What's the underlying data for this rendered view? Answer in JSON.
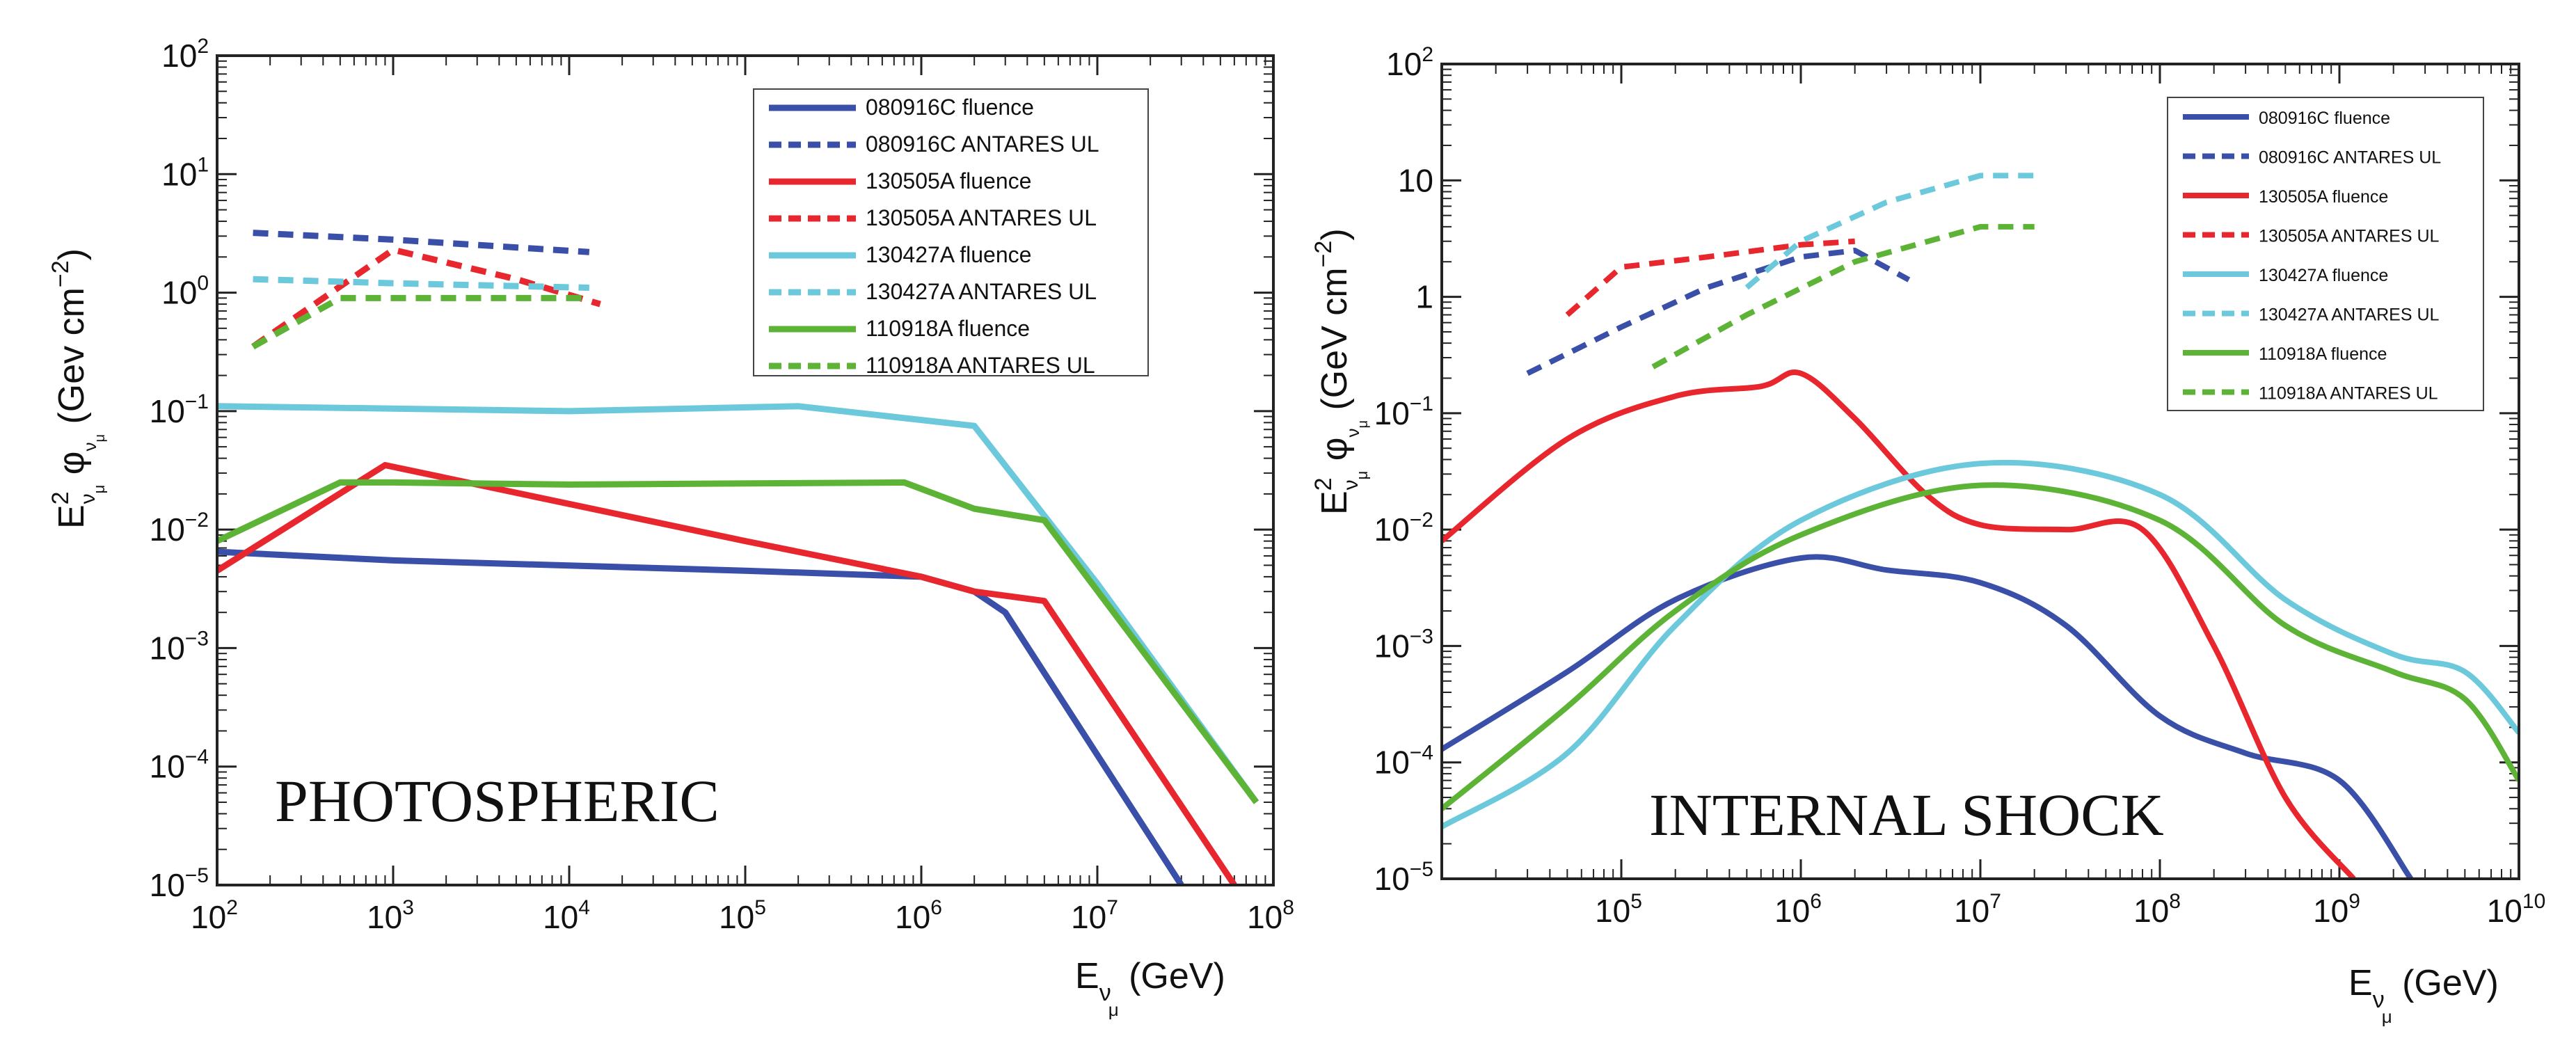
{
  "colors": {
    "blue": "#3a4fa8",
    "red": "#e8262d",
    "cyan": "#6cc9dc",
    "green": "#5cb335"
  },
  "chart_data": [
    {
      "type": "line",
      "panel_label": "PHOTOSPHERIC",
      "xscale": "log",
      "yscale": "log",
      "xlim": [
        100,
        100000000
      ],
      "ylim": [
        1e-05,
        100
      ],
      "xlabel": {
        "main": "E",
        "sub1": "ν",
        "sub2": "μ",
        "unit": " (GeV)"
      },
      "ylabel": {
        "main": "E",
        "sup": "2",
        "sub1": "ν",
        "sub2": "μ",
        "phi": " φ",
        "unit": " (Gev cm",
        "unit_sup": "−2",
        "unit_close": ")"
      },
      "xticks": [
        {
          "base": "10",
          "exp": "2"
        },
        {
          "base": "10",
          "exp": "3"
        },
        {
          "base": "10",
          "exp": "4"
        },
        {
          "base": "10",
          "exp": "5"
        },
        {
          "base": "10",
          "exp": "6"
        },
        {
          "base": "10",
          "exp": "7"
        },
        {
          "base": "10",
          "exp": "8"
        }
      ],
      "yticks": [
        {
          "base": "10",
          "exp": "−5"
        },
        {
          "base": "10",
          "exp": "−4"
        },
        {
          "base": "10",
          "exp": "−3"
        },
        {
          "base": "10",
          "exp": "−2"
        },
        {
          "base": "10",
          "exp": "−1"
        },
        {
          "base": "10",
          "exp": "0"
        },
        {
          "base": "10",
          "exp": "1"
        },
        {
          "base": "10",
          "exp": "2"
        }
      ],
      "legend_position": "top-right",
      "series": [
        {
          "name": "080916C fluence",
          "color": "blue",
          "dashed": false,
          "x": [
            100,
            1000,
            100000,
            1000000,
            2000000,
            3000000,
            30000000
          ],
          "y": [
            0.0065,
            0.0055,
            0.0045,
            0.004,
            0.003,
            0.002,
            1e-05
          ]
        },
        {
          "name": "080916C ANTARES UL",
          "color": "blue",
          "dashed": true,
          "x": [
            160,
            1000,
            13000
          ],
          "y": [
            3.2,
            2.8,
            2.2
          ]
        },
        {
          "name": "130505A fluence",
          "color": "red",
          "dashed": false,
          "x": [
            100,
            900,
            100000,
            1000000,
            2000000,
            5000000,
            60000000
          ],
          "y": [
            0.0045,
            0.035,
            0.008,
            0.004,
            0.003,
            0.0025,
            1e-05
          ]
        },
        {
          "name": "130505A ANTARES UL",
          "color": "red",
          "dashed": true,
          "x": [
            160,
            1000,
            5000,
            15000
          ],
          "y": [
            0.35,
            2.3,
            1.3,
            0.8
          ]
        },
        {
          "name": "130427A fluence",
          "color": "cyan",
          "dashed": false,
          "x": [
            100,
            1000,
            10000,
            200000,
            2000000,
            10000000,
            80000000
          ],
          "y": [
            0.11,
            0.105,
            0.1,
            0.11,
            0.075,
            0.0035,
            5e-05
          ]
        },
        {
          "name": "130427A ANTARES UL",
          "color": "cyan",
          "dashed": true,
          "x": [
            160,
            1000,
            13000
          ],
          "y": [
            1.3,
            1.2,
            1.1
          ]
        },
        {
          "name": "110918A fluence",
          "color": "green",
          "dashed": false,
          "x": [
            100,
            500,
            1000,
            10000,
            800000,
            2000000,
            5000000,
            80000000
          ],
          "y": [
            0.008,
            0.025,
            0.025,
            0.024,
            0.025,
            0.015,
            0.012,
            5e-05
          ]
        },
        {
          "name": "110918A ANTARES UL",
          "color": "green",
          "dashed": true,
          "x": [
            160,
            500,
            13000
          ],
          "y": [
            0.35,
            0.9,
            0.9
          ]
        }
      ]
    },
    {
      "type": "line",
      "panel_label": "INTERNAL SHOCK",
      "xscale": "log",
      "yscale": "log",
      "xlim": [
        10000,
        10000000000
      ],
      "ylim": [
        1e-05,
        100
      ],
      "xlabel": {
        "main": "E",
        "sub1": "ν",
        "sub2": "μ",
        "unit": " (GeV)"
      },
      "ylabel": {
        "main": "E",
        "sup": "2",
        "sub1": "ν",
        "sub2": "μ",
        "phi": " φ",
        "unit": " (GeV cm",
        "unit_sup": "−2",
        "unit_close": ")"
      },
      "xticks": [
        {
          "base": "10",
          "exp": "5"
        },
        {
          "base": "10",
          "exp": "6"
        },
        {
          "base": "10",
          "exp": "7"
        },
        {
          "base": "10",
          "exp": "8"
        },
        {
          "base": "10",
          "exp": "9"
        },
        {
          "base": "10",
          "exp": "10"
        }
      ],
      "yticks": [
        {
          "base": "10",
          "exp": "−5"
        },
        {
          "base": "10",
          "exp": "−4"
        },
        {
          "base": "10",
          "exp": "−3"
        },
        {
          "base": "10",
          "exp": "−2"
        },
        {
          "base": "10",
          "exp": "−1"
        },
        {
          "base": "1",
          "exp": ""
        },
        {
          "base": "10",
          "exp": ""
        },
        {
          "base": "10",
          "exp": "2"
        }
      ],
      "legend_position": "top-right",
      "series": [
        {
          "name": "080916C fluence",
          "color": "blue",
          "dashed": false,
          "x": [
            10000,
            50000,
            200000,
            1000000,
            3000000,
            10000000,
            30000000,
            100000000,
            300000000,
            1000000000,
            2500000000
          ],
          "y": [
            0.00013,
            0.0006,
            0.0025,
            0.0057,
            0.0045,
            0.0035,
            0.0015,
            0.00025,
            0.00012,
            7e-05,
            1e-05
          ]
        },
        {
          "name": "080916C ANTARES UL",
          "color": "blue",
          "dashed": true,
          "x": [
            30000,
            100000,
            300000,
            1000000,
            2000000,
            4000000
          ],
          "y": [
            0.22,
            0.55,
            1.2,
            2.2,
            2.5,
            1.4
          ]
        },
        {
          "name": "130505A fluence",
          "color": "red",
          "dashed": false,
          "x": [
            10000,
            50000,
            200000,
            600000,
            1000000,
            2000000,
            5000000,
            10000000,
            30000000,
            80000000,
            200000000,
            500000000,
            1200000000
          ],
          "y": [
            0.008,
            0.06,
            0.14,
            0.17,
            0.22,
            0.09,
            0.02,
            0.011,
            0.01,
            0.01,
            0.001,
            5e-05,
            1e-05
          ]
        },
        {
          "name": "130505A ANTARES UL",
          "color": "red",
          "dashed": true,
          "x": [
            50000,
            100000,
            300000,
            1000000,
            2000000
          ],
          "y": [
            0.7,
            1.8,
            2.2,
            2.8,
            3.0
          ]
        },
        {
          "name": "130427A fluence",
          "color": "cyan",
          "dashed": false,
          "x": [
            10000,
            50000,
            200000,
            1000000,
            10000000,
            100000000,
            500000000,
            2000000000,
            5000000000,
            10000000000
          ],
          "y": [
            2.8e-05,
            0.00012,
            0.0015,
            0.012,
            0.037,
            0.02,
            0.0025,
            0.00085,
            0.0006,
            0.00018
          ]
        },
        {
          "name": "130427A ANTARES UL",
          "color": "cyan",
          "dashed": true,
          "x": [
            500000,
            1000000,
            3000000,
            10000000,
            20000000
          ],
          "y": [
            1.2,
            3.0,
            6.5,
            11,
            11
          ]
        },
        {
          "name": "110918A fluence",
          "color": "green",
          "dashed": false,
          "x": [
            10000,
            50000,
            200000,
            1000000,
            10000000,
            100000000,
            500000000,
            2000000000,
            5000000000,
            10000000000
          ],
          "y": [
            4e-05,
            0.0003,
            0.002,
            0.009,
            0.024,
            0.012,
            0.0015,
            0.0006,
            0.00035,
            7e-05
          ]
        },
        {
          "name": "110918A ANTARES UL",
          "color": "green",
          "dashed": true,
          "x": [
            150000,
            500000,
            2000000,
            10000000,
            20000000
          ],
          "y": [
            0.25,
            0.7,
            2.0,
            4.0,
            4.0
          ]
        }
      ]
    }
  ]
}
